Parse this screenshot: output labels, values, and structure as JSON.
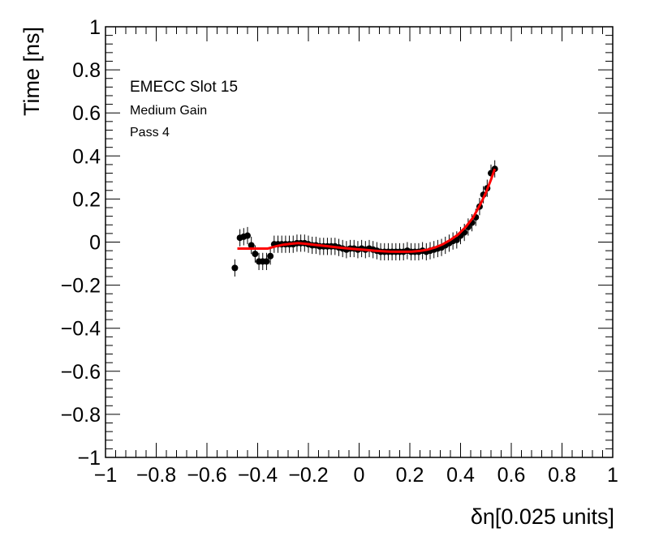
{
  "chart_data": {
    "type": "scatter",
    "xlabel": "δη[0.025 units]",
    "ylabel": "Time [ns]",
    "xlim": [
      -1,
      1
    ],
    "ylim": [
      -1,
      1
    ],
    "x_ticks": [
      -1,
      -0.8,
      -0.6,
      -0.4,
      -0.2,
      0,
      0.2,
      0.4,
      0.6,
      0.8,
      1
    ],
    "x_tick_labels": [
      "−1",
      "−0.8",
      "−0.6",
      "−0.4",
      "−0.2",
      "0",
      "0.2",
      "0.4",
      "0.6",
      "0.8",
      "1"
    ],
    "y_ticks": [
      -1,
      -0.8,
      -0.6,
      -0.4,
      -0.2,
      0,
      0.2,
      0.4,
      0.6,
      0.8,
      1
    ],
    "y_tick_labels": [
      "−1",
      "−0.8",
      "−0.6",
      "−0.4",
      "−0.2",
      "0",
      "0.2",
      "0.4",
      "0.6",
      "0.8",
      "1"
    ],
    "grid": false,
    "annotations": [
      "EMECC Slot 15",
      "Medium Gain",
      "Pass 4"
    ],
    "colors": {
      "points": "#000000",
      "fit": "#ff0000",
      "frame": "#000000"
    },
    "series": [
      {
        "type": "scatter_with_error_bars",
        "x": [
          -0.49,
          -0.47,
          -0.455,
          -0.44,
          -0.425,
          -0.41,
          -0.395,
          -0.38,
          -0.365,
          -0.35,
          -0.335,
          -0.32,
          -0.305,
          -0.29,
          -0.275,
          -0.26,
          -0.245,
          -0.23,
          -0.215,
          -0.2,
          -0.185,
          -0.17,
          -0.155,
          -0.14,
          -0.125,
          -0.11,
          -0.095,
          -0.08,
          -0.065,
          -0.05,
          -0.035,
          -0.02,
          -0.005,
          0.01,
          0.025,
          0.04,
          0.055,
          0.07,
          0.085,
          0.1,
          0.115,
          0.13,
          0.145,
          0.16,
          0.175,
          0.19,
          0.205,
          0.22,
          0.235,
          0.25,
          0.265,
          0.28,
          0.295,
          0.31,
          0.325,
          0.34,
          0.355,
          0.37,
          0.385,
          0.4,
          0.415,
          0.43,
          0.445,
          0.46,
          0.475,
          0.49,
          0.505,
          0.52,
          0.535
        ],
        "y": [
          -0.12,
          0.02,
          0.025,
          0.03,
          -0.015,
          -0.055,
          -0.09,
          -0.09,
          -0.09,
          -0.065,
          -0.01,
          -0.01,
          -0.01,
          -0.01,
          -0.01,
          -0.01,
          -0.005,
          -0.005,
          -0.005,
          -0.01,
          -0.015,
          -0.015,
          -0.02,
          -0.02,
          -0.02,
          -0.02,
          -0.02,
          -0.025,
          -0.03,
          -0.035,
          -0.03,
          -0.03,
          -0.035,
          -0.03,
          -0.035,
          -0.03,
          -0.035,
          -0.04,
          -0.045,
          -0.045,
          -0.045,
          -0.045,
          -0.045,
          -0.045,
          -0.045,
          -0.04,
          -0.045,
          -0.045,
          -0.045,
          -0.04,
          -0.045,
          -0.04,
          -0.035,
          -0.03,
          -0.025,
          -0.015,
          -0.005,
          0.005,
          0.01,
          0.03,
          0.045,
          0.07,
          0.09,
          0.115,
          0.165,
          0.22,
          0.25,
          0.32,
          0.34
        ],
        "yerr": [
          0.04,
          0.04,
          0.04,
          0.04,
          0.04,
          0.04,
          0.04,
          0.04,
          0.04,
          0.04,
          0.04,
          0.04,
          0.04,
          0.04,
          0.04,
          0.04,
          0.04,
          0.04,
          0.04,
          0.04,
          0.04,
          0.04,
          0.04,
          0.04,
          0.04,
          0.04,
          0.04,
          0.04,
          0.04,
          0.04,
          0.04,
          0.04,
          0.04,
          0.04,
          0.04,
          0.04,
          0.04,
          0.04,
          0.04,
          0.04,
          0.04,
          0.04,
          0.04,
          0.04,
          0.04,
          0.04,
          0.04,
          0.04,
          0.04,
          0.04,
          0.04,
          0.04,
          0.04,
          0.04,
          0.04,
          0.04,
          0.04,
          0.04,
          0.04,
          0.04,
          0.04,
          0.04,
          0.04,
          0.04,
          0.04,
          0.04,
          0.04,
          0.04,
          0.04
        ],
        "color": "#000000"
      },
      {
        "type": "line",
        "x": [
          -0.48,
          -0.45,
          -0.42,
          -0.39,
          -0.36,
          -0.33,
          -0.3,
          -0.27,
          -0.24,
          -0.21,
          -0.18,
          -0.15,
          -0.12,
          -0.09,
          -0.06,
          -0.03,
          0.0,
          0.03,
          0.06,
          0.09,
          0.12,
          0.15,
          0.18,
          0.21,
          0.24,
          0.27,
          0.3,
          0.33,
          0.36,
          0.39,
          0.42,
          0.45,
          0.48,
          0.5,
          0.52,
          0.535
        ],
        "y": [
          -0.03,
          -0.03,
          -0.03,
          -0.03,
          -0.03,
          -0.02,
          -0.012,
          -0.008,
          -0.005,
          -0.008,
          -0.012,
          -0.016,
          -0.02,
          -0.024,
          -0.028,
          -0.031,
          -0.034,
          -0.037,
          -0.04,
          -0.042,
          -0.044,
          -0.045,
          -0.045,
          -0.044,
          -0.041,
          -0.035,
          -0.025,
          -0.01,
          0.01,
          0.035,
          0.07,
          0.115,
          0.18,
          0.23,
          0.29,
          0.34
        ],
        "color": "#ff0000"
      }
    ]
  }
}
